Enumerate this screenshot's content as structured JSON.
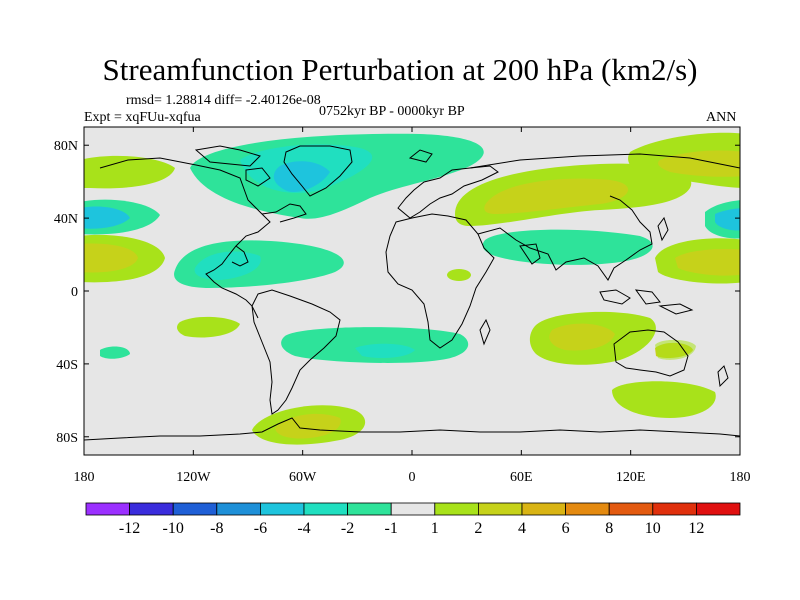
{
  "title": "Streamfunction Perturbation at 200 hPa (km2/s)",
  "stats": "rmsd= 1.28814 diff= -2.40126e-08",
  "experiment": "Expt = xqFUu-xqfua",
  "period": "0752kyr BP - 0000kyr BP",
  "season": "ANN",
  "axes": {
    "lat_ticks": [
      "80N",
      "40N",
      "0",
      "40S",
      "80S"
    ],
    "lon_ticks": [
      "180",
      "120W",
      "60W",
      "0",
      "60E",
      "120E",
      "180"
    ]
  },
  "colorbar": {
    "labels": [
      "-12",
      "-10",
      "-8",
      "-6",
      "-4",
      "-2",
      "-1",
      "1",
      "2",
      "4",
      "6",
      "8",
      "10",
      "12"
    ],
    "colors": [
      "#9b30ff",
      "#3a2cdc",
      "#1f5fd6",
      "#1e90d8",
      "#1ec4dd",
      "#20dfc0",
      "#2ee39a",
      "#e6e6e6",
      "#a8e21a",
      "#c6d21a",
      "#d9b414",
      "#e48a10",
      "#e35a10",
      "#e0300c",
      "#e01010"
    ]
  },
  "map": {
    "background": "#e6e6e6",
    "coast_color": "#000000"
  }
}
